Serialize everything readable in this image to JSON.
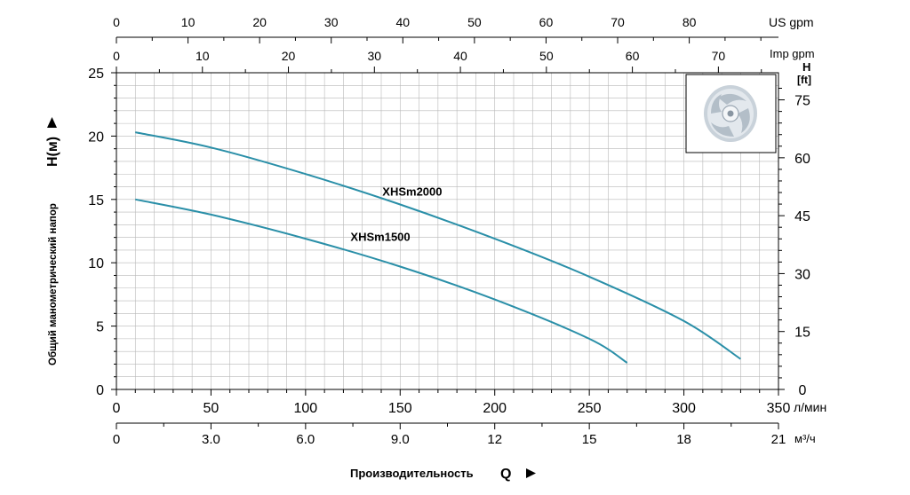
{
  "chart_data": {
    "type": "line",
    "xlabel": "Производительность",
    "xlabel_symbol": "Q",
    "ylabel": "Общий манометрический напор",
    "ylabel_symbol": "H(м)",
    "x_unit": "л/мин",
    "xlim": [
      0,
      350
    ],
    "ylim": [
      0,
      25
    ],
    "x_ticks": [
      "0",
      "50",
      "100",
      "150",
      "200",
      "250",
      "300",
      "350"
    ],
    "y_ticks": [
      "0",
      "5",
      "10",
      "15",
      "20",
      "25"
    ],
    "grid": true,
    "secondary_axes": {
      "us_gpm": {
        "label": "US gpm",
        "ticks": [
          "0",
          "10",
          "20",
          "30",
          "40",
          "50",
          "60",
          "70",
          "80"
        ],
        "per_x_unit": 0.264172
      },
      "imp_gpm": {
        "label": "Imp gpm",
        "ticks": [
          "0",
          "10",
          "20",
          "30",
          "40",
          "50",
          "60",
          "70"
        ],
        "per_x_unit": 0.219969
      },
      "m3h": {
        "label": "м³/ч",
        "ticks": [
          "0",
          "3.0",
          "6.0",
          "9.0",
          "12",
          "15",
          "18",
          "21"
        ],
        "per_x_unit": 0.06
      },
      "ft": {
        "label_top": "H",
        "label": "[ft]",
        "ticks": [
          "0",
          "15",
          "30",
          "45",
          "60",
          "75"
        ],
        "per_y_unit": 3.28084
      }
    },
    "series": [
      {
        "name": "XHSm2000",
        "color": "#2a8fa8",
        "x": [
          10,
          50,
          100,
          150,
          200,
          250,
          300,
          330
        ],
        "y": [
          20.3,
          19.1,
          17.0,
          14.6,
          11.9,
          8.9,
          5.4,
          2.4
        ]
      },
      {
        "name": "XHSm1500",
        "color": "#2a8fa8",
        "x": [
          10,
          50,
          100,
          150,
          200,
          250,
          270
        ],
        "y": [
          15.0,
          13.8,
          11.9,
          9.7,
          7.1,
          4.0,
          2.1
        ]
      }
    ]
  }
}
